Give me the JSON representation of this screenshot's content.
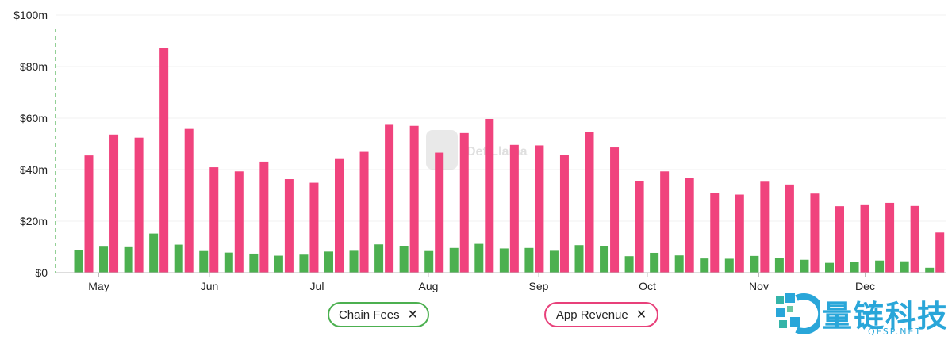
{
  "chart_data": {
    "type": "bar",
    "xlabel": "",
    "ylabel": "",
    "ylim": [
      0,
      100
    ],
    "y_ticks": [
      "$0",
      "$20m",
      "$40m",
      "$60m",
      "$80m",
      "$100m"
    ],
    "x_ticks": [
      "May",
      "Jun",
      "Jul",
      "Aug",
      "Sep",
      "Oct",
      "Nov",
      "Dec"
    ],
    "grid": true,
    "legend_position": "bottom",
    "series": [
      {
        "name": "Chain Fees",
        "color": "#4cb050",
        "values": [
          8.7,
          10.1,
          9.9,
          15.2,
          10.9,
          8.4,
          7.8,
          7.4,
          6.6,
          7.0,
          8.2,
          8.5,
          11.0,
          10.2,
          8.4,
          9.6,
          11.2,
          9.4,
          9.6,
          8.5,
          10.7,
          10.2,
          6.4,
          7.7,
          6.7,
          5.5,
          5.4,
          6.5,
          5.7,
          5.0,
          3.8,
          4.1,
          4.7,
          4.4,
          1.9
        ]
      },
      {
        "name": "App Revenue",
        "color": "#f0437d",
        "values": [
          45.5,
          53.6,
          52.4,
          87.3,
          55.8,
          40.9,
          39.3,
          43.1,
          36.3,
          34.9,
          44.4,
          46.9,
          57.4,
          57.0,
          46.6,
          54.2,
          59.7,
          49.6,
          49.4,
          45.6,
          54.5,
          48.6,
          35.5,
          39.3,
          36.7,
          30.8,
          30.3,
          35.3,
          34.2,
          30.7,
          25.8,
          26.2,
          27.1,
          25.9,
          15.6
        ]
      }
    ]
  },
  "legend": {
    "chain_fees": "Chain Fees",
    "app_revenue": "App Revenue",
    "close": "✕"
  },
  "watermarks": {
    "center": "DefiLlama",
    "corner_cn": "量链科技",
    "corner_sub": "QFSP.NET"
  }
}
